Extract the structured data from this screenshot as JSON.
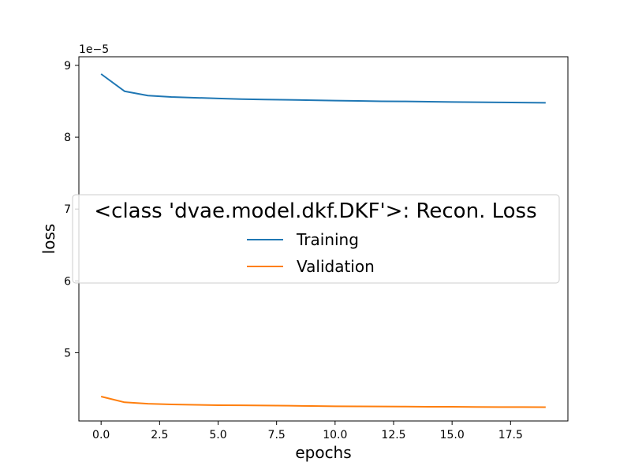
{
  "chart_data": {
    "type": "line",
    "title": "",
    "xlabel": "epochs",
    "ylabel": "loss",
    "y_offset_label": "1e−5",
    "y_scale_exponent": -5,
    "xlim": [
      -0.95,
      19.95
    ],
    "ylim": [
      4.05,
      9.12
    ],
    "x_ticks": [
      0.0,
      2.5,
      5.0,
      7.5,
      10.0,
      12.5,
      15.0,
      17.5
    ],
    "x_tick_labels": [
      "0.0",
      "2.5",
      "5.0",
      "7.5",
      "10.0",
      "12.5",
      "15.0",
      "17.5"
    ],
    "y_ticks": [
      5,
      6,
      7,
      8,
      9
    ],
    "y_tick_labels": [
      "5",
      "6",
      "7",
      "8",
      "9"
    ],
    "grid": false,
    "legend": {
      "title": "<class 'dvae.model.dkf.DKF'>: Recon. Loss",
      "placement": "center"
    },
    "x": [
      0,
      1,
      2,
      3,
      4,
      5,
      6,
      7,
      8,
      9,
      10,
      11,
      12,
      13,
      14,
      15,
      16,
      17,
      18,
      19
    ],
    "series": [
      {
        "name": "Training",
        "color": "#1f77b4",
        "values": [
          8.88,
          8.64,
          8.58,
          8.56,
          8.55,
          8.54,
          8.53,
          8.525,
          8.52,
          8.515,
          8.51,
          8.505,
          8.5,
          8.498,
          8.495,
          8.49,
          8.487,
          8.485,
          8.482,
          8.48
        ]
      },
      {
        "name": "Validation",
        "color": "#ff7f0e",
        "values": [
          4.39,
          4.31,
          4.29,
          4.28,
          4.275,
          4.27,
          4.268,
          4.265,
          4.262,
          4.258,
          4.255,
          4.253,
          4.251,
          4.25,
          4.248,
          4.247,
          4.245,
          4.244,
          4.243,
          4.242
        ]
      }
    ]
  }
}
